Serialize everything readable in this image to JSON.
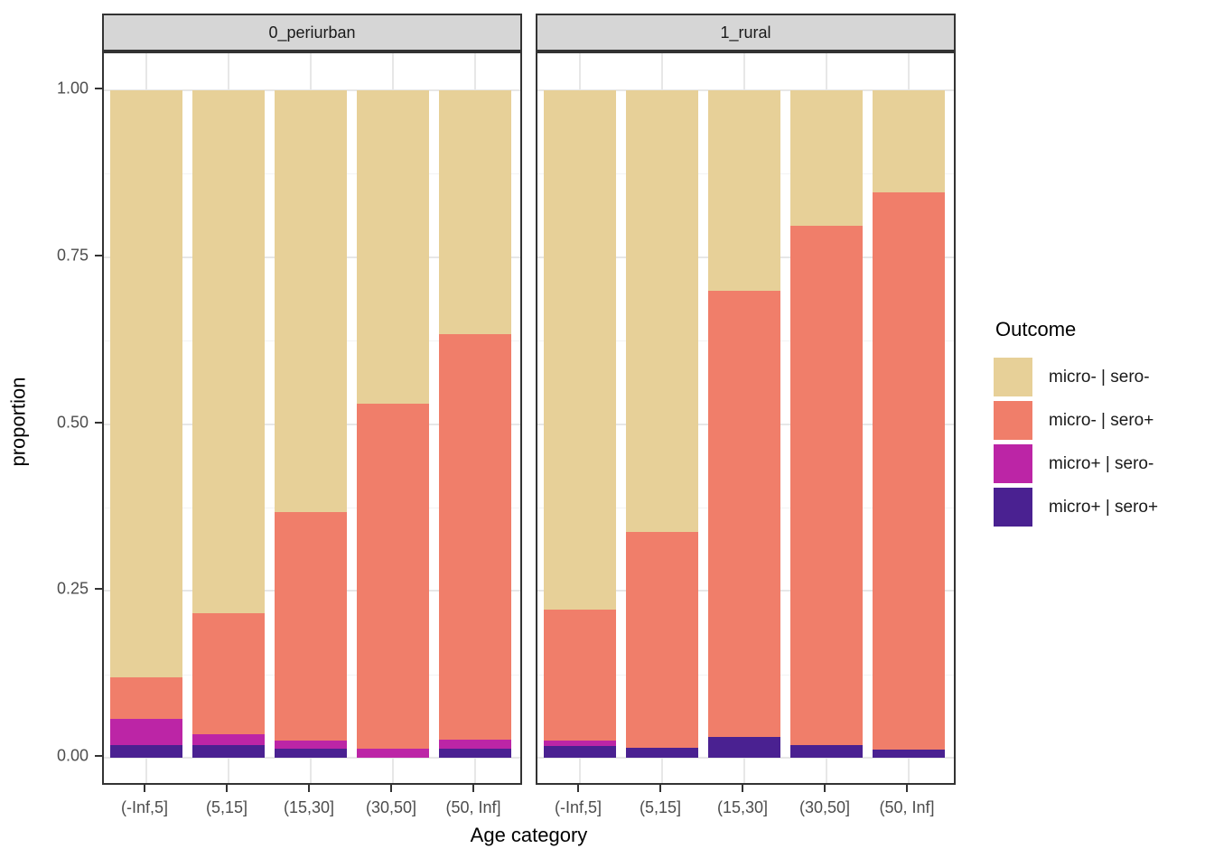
{
  "chart_data": {
    "type": "bar",
    "stacked": true,
    "orientation": "vertical",
    "title": "",
    "xlabel": "Age category",
    "ylabel": "proportion",
    "ylim": [
      0,
      1
    ],
    "yticks": [
      0.0,
      0.25,
      0.5,
      0.75,
      1.0
    ],
    "ytick_labels": [
      "0.00",
      "0.25",
      "0.50",
      "0.75",
      "1.00"
    ],
    "yticks_minor": [
      0.125,
      0.375,
      0.625,
      0.875
    ],
    "grid": true,
    "categories": [
      "(-Inf,5]",
      "(5,15]",
      "(15,30]",
      "(30,50]",
      "(50, Inf]"
    ],
    "facets": [
      {
        "label": "0_periurban"
      },
      {
        "label": "1_rural"
      }
    ],
    "legend": {
      "title": "Outcome",
      "position": "right"
    },
    "series": [
      {
        "name": "micro- | sero-",
        "color": "#E7D098",
        "values": [
          [
            0.88,
            0.784,
            0.632,
            0.47,
            0.365
          ],
          [
            0.778,
            0.662,
            0.3,
            0.203,
            0.153
          ]
        ]
      },
      {
        "name": "micro- | sero+",
        "color": "#F07E6A",
        "values": [
          [
            0.062,
            0.181,
            0.342,
            0.516,
            0.608
          ],
          [
            0.196,
            0.323,
            0.669,
            0.778,
            0.835
          ]
        ]
      },
      {
        "name": "micro+ | sero-",
        "color": "#BC25A6",
        "values": [
          [
            0.039,
            0.016,
            0.013,
            0.014,
            0.014
          ],
          [
            0.008,
            0.0,
            0.0,
            0.0,
            0.0
          ]
        ]
      },
      {
        "name": "micro+ | sero+",
        "color": "#4A2191",
        "values": [
          [
            0.019,
            0.019,
            0.013,
            0.0,
            0.013
          ],
          [
            0.018,
            0.015,
            0.031,
            0.019,
            0.012
          ]
        ]
      }
    ],
    "colors": {
      "strip_fill": "#D6D6D6",
      "panel_border": "#333333",
      "grid_major": "#E7E7E7",
      "grid_minor": "#F3F3F3",
      "tick_text": "#4D4D4D"
    }
  }
}
